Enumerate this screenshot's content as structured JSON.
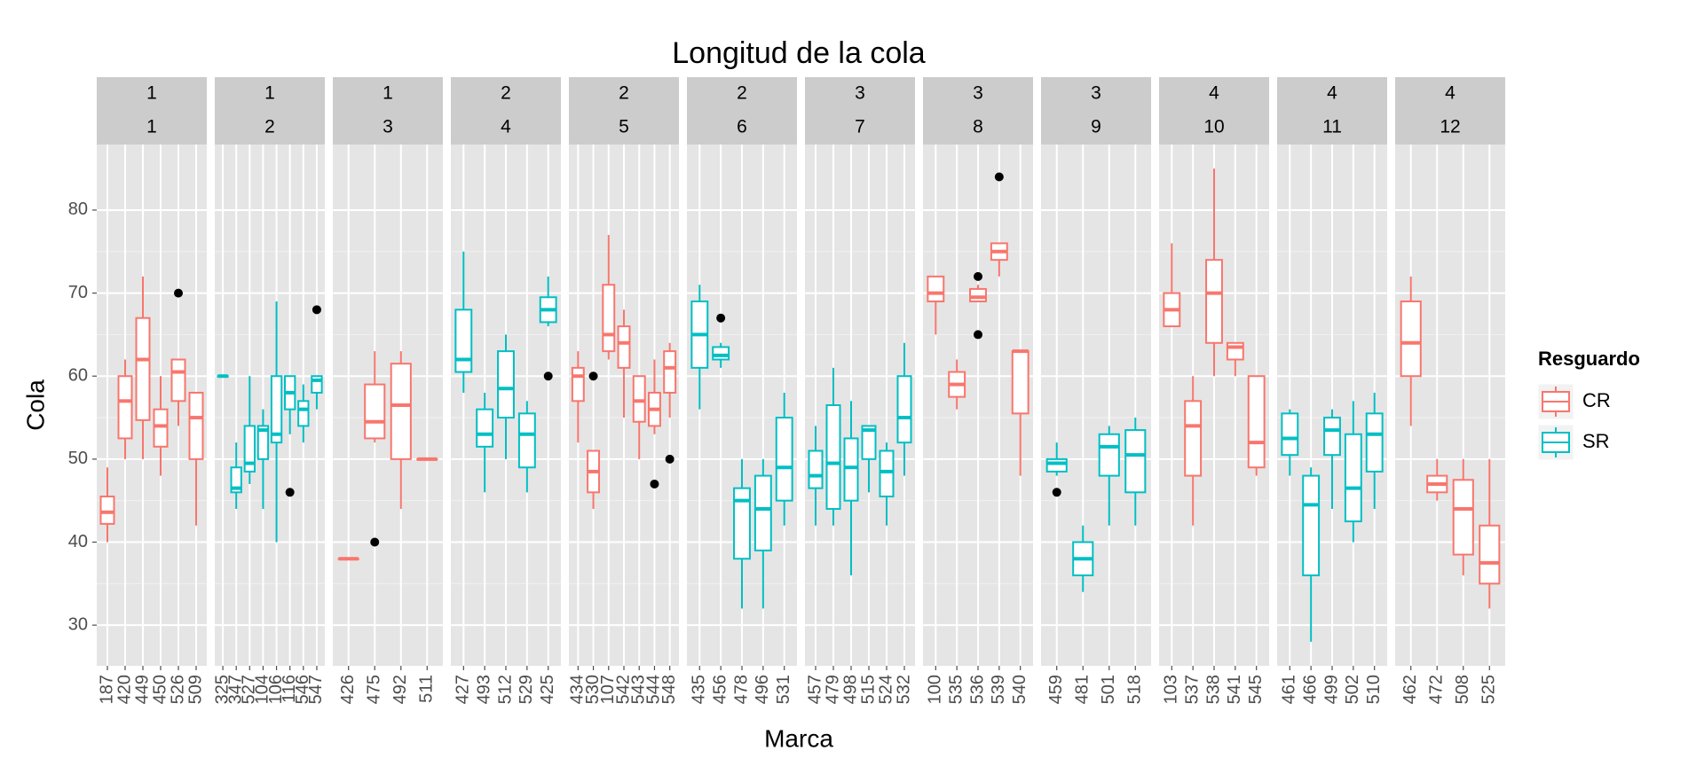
{
  "chart_data": {
    "type": "boxplot",
    "title": "Longitud de la cola",
    "x_label": "Marca",
    "y_label": "Cola",
    "ylim": [
      25.1,
      87.9
    ],
    "yticks": [
      30,
      40,
      50,
      60,
      70,
      80
    ],
    "grid": true,
    "legend": {
      "title": "Resguardo",
      "position": "right",
      "items": [
        {
          "name": "CR",
          "color": "#F8766D"
        },
        {
          "name": "SR",
          "color": "#00BFC4"
        }
      ]
    },
    "panels": [
      {
        "strip": [
          "1",
          "1"
        ],
        "group": "CR",
        "categories": [
          "187",
          "420",
          "449",
          "450",
          "526",
          "509"
        ],
        "min": [
          40,
          50,
          50,
          48,
          54,
          42
        ],
        "q1": [
          42.2,
          52.5,
          54.7,
          51.5,
          57,
          50
        ],
        "median": [
          43.6,
          57,
          62,
          54,
          60.5,
          55
        ],
        "q3": [
          45.5,
          60,
          67,
          56,
          62,
          58
        ],
        "max": [
          49,
          62,
          72,
          60,
          62,
          58
        ],
        "outliers": [
          [],
          [],
          [],
          [],
          [
            70
          ],
          []
        ]
      },
      {
        "strip": [
          "1",
          "2"
        ],
        "group": "SR",
        "categories": [
          "325",
          "347",
          "527",
          "104",
          "106",
          "116",
          "546",
          "547"
        ],
        "min": [
          60,
          44,
          47,
          44,
          40,
          53,
          52,
          56
        ],
        "q1": [
          60,
          46,
          48.5,
          50,
          52,
          56,
          54,
          58
        ],
        "median": [
          60,
          46.5,
          49.5,
          53.5,
          53,
          58,
          56,
          59.5
        ],
        "q3": [
          60,
          49,
          54,
          54,
          60,
          60,
          57,
          60
        ],
        "max": [
          60,
          52,
          60,
          56,
          69,
          60,
          59,
          60
        ],
        "outliers": [
          [],
          [],
          [],
          [],
          [],
          [
            46
          ],
          [],
          [
            68
          ]
        ]
      },
      {
        "strip": [
          "1",
          "3"
        ],
        "group": "CR",
        "categories": [
          "426",
          "475",
          "492",
          "511"
        ],
        "min": [
          38,
          52,
          44,
          50
        ],
        "q1": [
          38,
          52.5,
          50,
          50
        ],
        "median": [
          38,
          54.5,
          56.5,
          50
        ],
        "q3": [
          38,
          59,
          61.5,
          50
        ],
        "max": [
          38,
          63,
          63,
          50
        ],
        "outliers": [
          [],
          [
            40
          ],
          [],
          []
        ]
      },
      {
        "strip": [
          "2",
          "4"
        ],
        "group": "SR",
        "categories": [
          "427",
          "493",
          "512",
          "529",
          "425"
        ],
        "min": [
          58,
          46,
          50,
          46,
          66
        ],
        "q1": [
          60.5,
          51.5,
          55,
          49,
          66.5
        ],
        "median": [
          62,
          53,
          58.5,
          53,
          68
        ],
        "q3": [
          68,
          56,
          63,
          55.5,
          69.5
        ],
        "max": [
          75,
          58,
          65,
          57,
          72
        ],
        "outliers": [
          [],
          [],
          [],
          [],
          [
            60
          ]
        ]
      },
      {
        "strip": [
          "2",
          "5"
        ],
        "group": "CR",
        "categories": [
          "434",
          "530",
          "107",
          "542",
          "543",
          "544",
          "548"
        ],
        "min": [
          52,
          44,
          62,
          55,
          50,
          53,
          55
        ],
        "q1": [
          57,
          46,
          63,
          61,
          54.5,
          54,
          58
        ],
        "median": [
          60,
          48.5,
          65,
          64,
          57,
          56,
          61
        ],
        "q3": [
          61,
          51,
          71,
          66,
          60,
          58,
          63
        ],
        "max": [
          63,
          51,
          77,
          68,
          60,
          62,
          64
        ],
        "outliers": [
          [],
          [
            60
          ],
          [],
          [],
          [],
          [
            47
          ],
          [
            50
          ]
        ]
      },
      {
        "strip": [
          "2",
          "6"
        ],
        "group": "SR",
        "categories": [
          "435",
          "456",
          "478",
          "496",
          "531"
        ],
        "min": [
          56,
          61,
          32,
          32,
          42
        ],
        "q1": [
          61,
          62,
          38,
          39,
          45
        ],
        "median": [
          65,
          62.5,
          45,
          44,
          49
        ],
        "q3": [
          69,
          63.5,
          46.5,
          48,
          55
        ],
        "max": [
          71,
          64,
          50,
          50,
          58
        ],
        "outliers": [
          [],
          [
            67
          ],
          [],
          [],
          []
        ]
      },
      {
        "strip": [
          "3",
          "7"
        ],
        "group": "SR",
        "categories": [
          "457",
          "479",
          "498",
          "515",
          "524",
          "532"
        ],
        "min": [
          42,
          42,
          36,
          46,
          42,
          48
        ],
        "q1": [
          46.5,
          44,
          45,
          50,
          45.5,
          52
        ],
        "median": [
          48,
          49.5,
          49,
          53.5,
          48.5,
          55
        ],
        "q3": [
          51,
          56.5,
          52.5,
          54,
          51,
          60
        ],
        "max": [
          54,
          61,
          57,
          54,
          52,
          64
        ],
        "outliers": [
          [],
          [],
          [],
          [],
          [],
          []
        ]
      },
      {
        "strip": [
          "3",
          "8"
        ],
        "group": "CR",
        "categories": [
          "100",
          "535",
          "536",
          "539",
          "540"
        ],
        "min": [
          65,
          56,
          69,
          72,
          48
        ],
        "q1": [
          69,
          57.5,
          69,
          74,
          55.5
        ],
        "median": [
          70,
          59,
          69.5,
          75,
          63
        ],
        "q3": [
          72,
          60.5,
          70.5,
          76,
          63
        ],
        "max": [
          72,
          62,
          71,
          76,
          63
        ],
        "outliers": [
          [],
          [],
          [
            72,
            65
          ],
          [
            84
          ],
          []
        ]
      },
      {
        "strip": [
          "3",
          "9"
        ],
        "group": "SR",
        "categories": [
          "459",
          "481",
          "501",
          "518"
        ],
        "min": [
          48,
          34,
          42,
          42
        ],
        "q1": [
          48.5,
          36,
          48,
          46
        ],
        "median": [
          49.5,
          38,
          51.5,
          50.5
        ],
        "q3": [
          50,
          40,
          53,
          53.5
        ],
        "max": [
          52,
          42,
          54,
          55
        ],
        "outliers": [
          [
            46
          ],
          [],
          [],
          []
        ]
      },
      {
        "strip": [
          "4",
          "10"
        ],
        "group": "CR",
        "categories": [
          "103",
          "537",
          "538",
          "541",
          "545"
        ],
        "min": [
          66,
          42,
          60,
          60,
          48
        ],
        "q1": [
          66,
          48,
          64,
          62,
          49
        ],
        "median": [
          68,
          54,
          70,
          63.5,
          52
        ],
        "q3": [
          70,
          57,
          74,
          64,
          60
        ],
        "max": [
          76,
          60,
          85,
          64,
          60
        ],
        "outliers": [
          [],
          [],
          [],
          [],
          []
        ]
      },
      {
        "strip": [
          "4",
          "11"
        ],
        "group": "SR",
        "categories": [
          "461",
          "466",
          "499",
          "502",
          "510"
        ],
        "min": [
          48,
          28,
          44,
          40,
          44
        ],
        "q1": [
          50.5,
          36,
          50.5,
          42.5,
          48.5
        ],
        "median": [
          52.5,
          44.5,
          53.5,
          46.5,
          53
        ],
        "q3": [
          55.5,
          48,
          55,
          53,
          55.5
        ],
        "max": [
          56,
          49,
          56,
          57,
          58
        ],
        "outliers": [
          [],
          [],
          [],
          [],
          []
        ]
      },
      {
        "strip": [
          "4",
          "12"
        ],
        "group": "CR",
        "categories": [
          "462",
          "472",
          "508",
          "525"
        ],
        "min": [
          54,
          45,
          36,
          32
        ],
        "q1": [
          60,
          46,
          38.5,
          35
        ],
        "median": [
          64,
          47,
          44,
          37.5
        ],
        "q3": [
          69,
          48,
          47.5,
          42
        ],
        "max": [
          72,
          50,
          50,
          50
        ],
        "outliers": [
          [],
          [],
          [],
          []
        ]
      }
    ]
  }
}
